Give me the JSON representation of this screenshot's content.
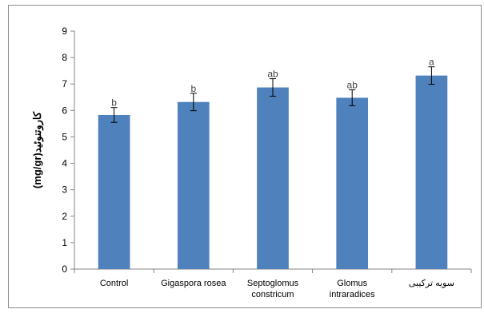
{
  "chart_data": {
    "type": "bar",
    "title": "",
    "xlabel": "",
    "ylabel": "کاروتنوئید(mg/gr)",
    "ylim": [
      0,
      9
    ],
    "yticks": [
      0,
      1,
      2,
      3,
      4,
      5,
      6,
      7,
      8,
      9
    ],
    "grid": false,
    "categories": [
      [
        "Control"
      ],
      [
        "Gigaspora rosea"
      ],
      [
        "Septoglomus",
        "constricum"
      ],
      [
        "Glomus",
        "intraradices"
      ],
      [
        "سویه ترکیبی"
      ]
    ],
    "values": [
      5.83,
      6.32,
      6.87,
      6.48,
      7.32
    ],
    "error": [
      0.28,
      0.33,
      0.33,
      0.3,
      0.33
    ],
    "significance": [
      "b",
      "b",
      "ab",
      "ab",
      "a"
    ],
    "colors": {
      "bar": "#4f81bd",
      "axis": "#868686",
      "frame": "#8c8c8c"
    }
  }
}
